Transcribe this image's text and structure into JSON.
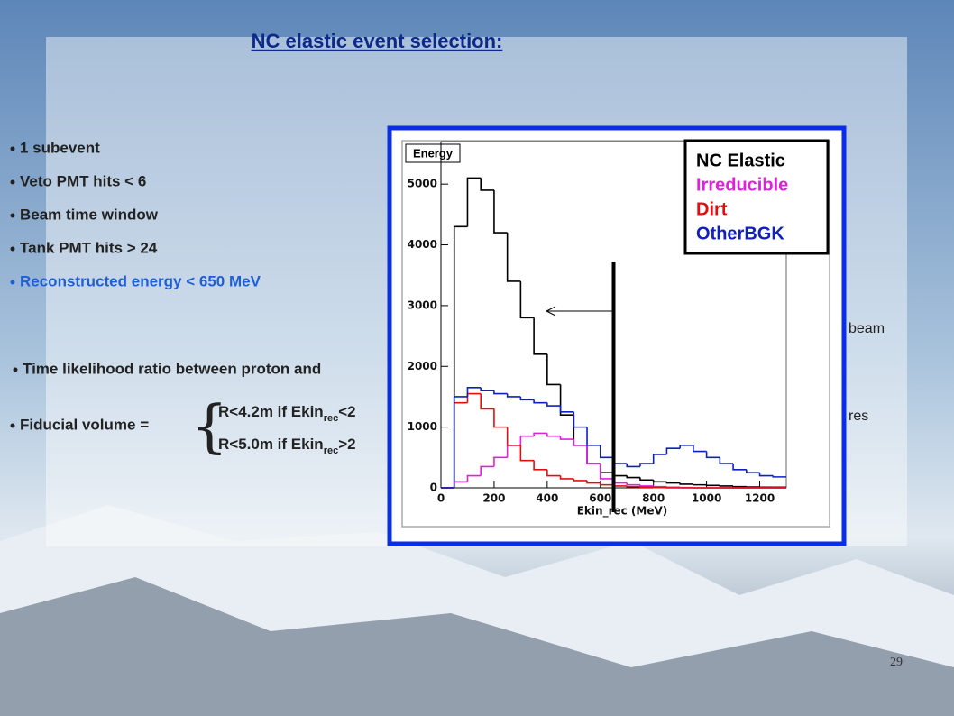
{
  "slide": {
    "title": "NC elastic event selection:",
    "bullets": [
      "1 subevent",
      "Veto PMT hits < 6",
      "Beam time window",
      "Tank PMT hits > 24",
      "Reconstructed energy < 650 MeV"
    ],
    "likelihood_bullet": "Time likelihood ratio between proton and",
    "fiducial": {
      "label": "Fiducial volume =",
      "lines": [
        {
          "text": "R<4.2m if  Ekin",
          "sub": "rec",
          "tail": "<2"
        },
        {
          "text": "R<5.0m if  Ekin",
          "sub": "rec",
          "tail": ">2"
        }
      ]
    },
    "fragments": [
      "beam",
      ")",
      "res"
    ],
    "page_number": "29"
  },
  "chart_data": {
    "type": "histogram",
    "title": "Energy",
    "x_label": "Ekin_rec (MeV)",
    "bins": [
      0,
      50,
      100,
      150,
      200,
      250,
      300,
      350,
      400,
      450,
      500,
      550,
      600,
      650,
      700,
      750,
      800,
      850,
      900,
      950,
      1000,
      1050,
      1100,
      1150,
      1200,
      1250,
      1300
    ],
    "series": [
      {
        "name": "NC Elastic",
        "color": "#000000",
        "values": [
          0,
          4300,
          5100,
          4900,
          4200,
          3400,
          2800,
          2200,
          1700,
          1200,
          700,
          400,
          250,
          200,
          170,
          130,
          100,
          80,
          60,
          50,
          40,
          30,
          20,
          15,
          10,
          10
        ]
      },
      {
        "name": "Irreducible",
        "color": "#e020e0",
        "values": [
          0,
          100,
          200,
          350,
          500,
          700,
          850,
          900,
          850,
          800,
          700,
          400,
          150,
          80,
          50,
          30,
          20,
          10,
          5,
          0,
          0,
          0,
          0,
          0,
          0,
          0
        ]
      },
      {
        "name": "Dirt",
        "color": "#e01010",
        "values": [
          0,
          1400,
          1550,
          1300,
          1000,
          700,
          450,
          300,
          200,
          150,
          120,
          80,
          50,
          30,
          20,
          10,
          5,
          0,
          0,
          0,
          0,
          0,
          0,
          0,
          0,
          0
        ]
      },
      {
        "name": "OtherBGK",
        "color": "#1020c0",
        "values": [
          0,
          1500,
          1650,
          1600,
          1550,
          1500,
          1450,
          1400,
          1350,
          1250,
          1000,
          700,
          500,
          400,
          350,
          400,
          550,
          650,
          700,
          600,
          500,
          400,
          300,
          250,
          200,
          180
        ]
      }
    ],
    "cut_x": 650,
    "xlim": [
      0,
      1300
    ],
    "xticks": [
      0,
      200,
      400,
      600,
      800,
      1000,
      1200
    ],
    "ylim": [
      0,
      5700
    ],
    "yticks": [
      0,
      1000,
      2000,
      3000,
      4000,
      5000
    ]
  }
}
